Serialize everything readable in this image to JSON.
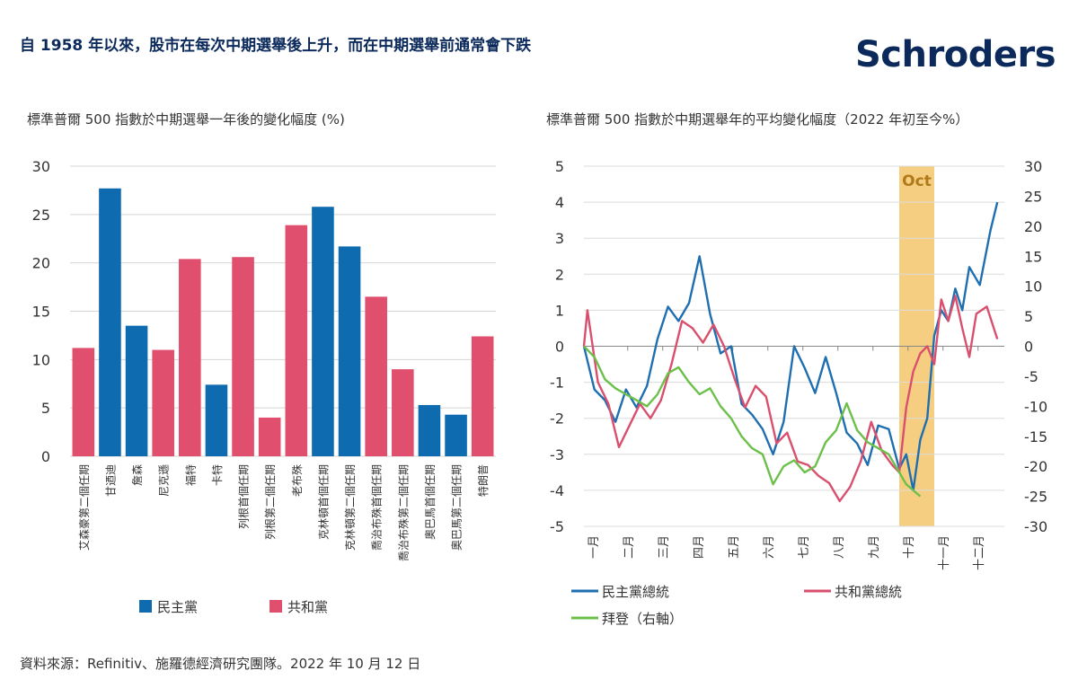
{
  "headline": "自 1958 年以來，股市在每次中期選舉後上升，而在中期選舉前通常會下跌",
  "brand": {
    "logo_text": "Schroders",
    "color": "#0b2a5b"
  },
  "source": "資料來源：Refinitiv、施羅德經濟研究團隊。2022 年 10 月 12 日",
  "chart_data": [
    {
      "type": "bar",
      "title": "標準普爾 500 指數於中期選舉一年後的變化幅度 (%)",
      "categories": [
        "艾森豪第二個任期",
        "甘迺迪",
        "詹森",
        "尼克遜",
        "福特",
        "卡特",
        "列根首個任期",
        "列根第二個任期",
        "老布殊",
        "克林頓首個任期",
        "克林頓第二個任期",
        "喬治布殊首個任期",
        "喬治布殊第二個任期",
        "奧巴馬首個任期",
        "奧巴馬第二個任期",
        "特朗普"
      ],
      "values": [
        11.2,
        27.7,
        13.5,
        11.0,
        20.4,
        7.4,
        20.6,
        4.0,
        23.9,
        25.8,
        21.7,
        16.5,
        9.0,
        5.3,
        4.3,
        12.4
      ],
      "party": [
        "共和黨",
        "民主黨",
        "民主黨",
        "共和黨",
        "共和黨",
        "民主黨",
        "共和黨",
        "共和黨",
        "共和黨",
        "民主黨",
        "民主黨",
        "共和黨",
        "共和黨",
        "民主黨",
        "民主黨",
        "共和黨"
      ],
      "ylim": [
        0,
        30
      ],
      "yticks": [
        0,
        5,
        10,
        15,
        20,
        25,
        30
      ],
      "grid": true,
      "legend": [
        {
          "name": "民主黨",
          "color": "#0f6bb0"
        },
        {
          "name": "共和黨",
          "color": "#e0506e"
        }
      ],
      "legend_position": "bottom"
    },
    {
      "type": "line",
      "title": "標準普爾 500 指數於中期選舉年的平均變化幅度（2022 年初至今%）",
      "x_labels": [
        "一月",
        "二月",
        "三月",
        "四月",
        "五月",
        "六月",
        "七月",
        "八月",
        "九月",
        "十月",
        "十一月",
        "十二月"
      ],
      "ylim_left": [
        -5,
        5
      ],
      "yticks_left": [
        -5,
        -4,
        -3,
        -2,
        -1,
        0,
        1,
        2,
        3,
        4,
        5
      ],
      "ylim_right": [
        -30,
        30
      ],
      "yticks_right": [
        -30,
        -25,
        -20,
        -15,
        -10,
        -5,
        0,
        5,
        10,
        15,
        20,
        25,
        30
      ],
      "highlight": {
        "label": "Oct",
        "from": 9.0,
        "to": 10.0,
        "color": "#f5c66b"
      },
      "grid": true,
      "series": [
        {
          "name": "民主黨總統",
          "color": "#1f6fb0",
          "axis": "left",
          "x": [
            0,
            0.3,
            0.6,
            0.9,
            1.2,
            1.5,
            1.8,
            2.1,
            2.4,
            2.7,
            3.0,
            3.3,
            3.6,
            3.9,
            4.2,
            4.5,
            4.8,
            5.1,
            5.4,
            5.7,
            6.0,
            6.3,
            6.6,
            6.9,
            7.2,
            7.5,
            7.8,
            8.1,
            8.4,
            8.7,
            9.0,
            9.2,
            9.4,
            9.6,
            9.8,
            10.0,
            10.2,
            10.4,
            10.6,
            10.8,
            11.0,
            11.3,
            11.6,
            11.8
          ],
          "y": [
            0,
            -1.2,
            -1.5,
            -2.1,
            -1.2,
            -1.7,
            -1.1,
            0.2,
            1.1,
            0.7,
            1.2,
            2.5,
            0.9,
            -0.2,
            0.0,
            -1.6,
            -1.9,
            -2.3,
            -3.0,
            -2.1,
            0.0,
            -0.6,
            -1.3,
            -0.3,
            -1.3,
            -2.4,
            -2.7,
            -3.3,
            -2.2,
            -2.3,
            -3.4,
            -3.0,
            -4.0,
            -2.6,
            -2.0,
            0.3,
            1.0,
            0.7,
            1.6,
            1.0,
            2.2,
            1.7,
            3.2,
            4.0
          ]
        },
        {
          "name": "共和黨總統",
          "color": "#d9506e",
          "axis": "left",
          "x": [
            0,
            0.1,
            0.4,
            0.7,
            1.0,
            1.3,
            1.6,
            1.9,
            2.2,
            2.5,
            2.8,
            3.1,
            3.4,
            3.7,
            4.0,
            4.3,
            4.6,
            4.9,
            5.2,
            5.5,
            5.8,
            6.1,
            6.4,
            6.7,
            7.0,
            7.3,
            7.6,
            7.9,
            8.2,
            8.5,
            8.8,
            9.0,
            9.2,
            9.4,
            9.6,
            9.8,
            10.0,
            10.2,
            10.4,
            10.6,
            10.8,
            11.0,
            11.2,
            11.5,
            11.8
          ],
          "y": [
            0,
            1.0,
            -1.0,
            -1.6,
            -2.8,
            -2.2,
            -1.6,
            -2.0,
            -1.5,
            -0.5,
            0.7,
            0.5,
            0.1,
            0.6,
            0.0,
            -0.9,
            -1.7,
            -1.1,
            -1.4,
            -2.7,
            -2.4,
            -3.2,
            -3.3,
            -3.6,
            -3.8,
            -4.3,
            -3.9,
            -3.2,
            -2.1,
            -2.9,
            -3.3,
            -3.5,
            -1.7,
            -0.7,
            -0.2,
            0.0,
            -0.5,
            1.3,
            0.7,
            1.4,
            0.5,
            -0.3,
            0.9,
            1.1,
            0.2
          ]
        },
        {
          "name": "拜登（右軸）",
          "color": "#6cc04a",
          "axis": "right",
          "x": [
            0,
            0.3,
            0.6,
            0.9,
            1.2,
            1.5,
            1.8,
            2.1,
            2.4,
            2.7,
            3.0,
            3.3,
            3.6,
            3.9,
            4.2,
            4.5,
            4.8,
            5.1,
            5.4,
            5.7,
            6.0,
            6.3,
            6.6,
            6.9,
            7.2,
            7.5,
            7.8,
            8.1,
            8.4,
            8.7,
            9.0,
            9.2,
            9.4,
            9.6
          ],
          "y": [
            0,
            -1.8,
            -5.5,
            -7.0,
            -8.0,
            -9.0,
            -10.0,
            -8.0,
            -4.5,
            -3.5,
            -6.0,
            -8.0,
            -7.0,
            -10.0,
            -12.0,
            -15.0,
            -17.0,
            -18.0,
            -23.0,
            -20.0,
            -19.0,
            -21.0,
            -20.0,
            -16.0,
            -14.0,
            -9.5,
            -14.0,
            -16.0,
            -17.0,
            -18.0,
            -21.0,
            -23.0,
            -24.0,
            -25.0
          ]
        }
      ],
      "legend_position": "bottom"
    }
  ]
}
